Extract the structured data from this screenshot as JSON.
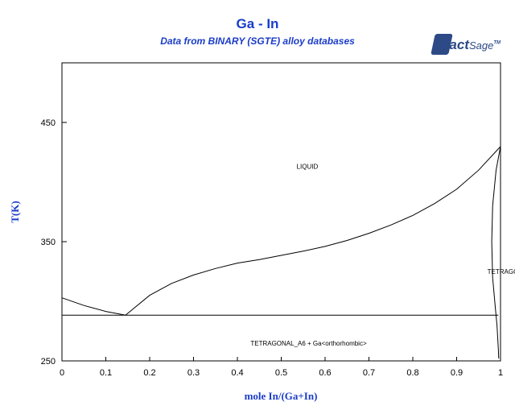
{
  "title": "Ga - In",
  "subtitle": "Data from BINARY (SGTE) alloy databases",
  "logo": {
    "text_bold": "Fact",
    "text_light": "Sage",
    "mark": "TM"
  },
  "chart_data": {
    "type": "line",
    "title": "Ga - In",
    "subtitle": "Data from BINARY (SGTE) alloy databases",
    "xlabel": "mole In/(Ga+In)",
    "ylabel": "T(K)",
    "xlim": [
      0,
      1
    ],
    "ylim": [
      250,
      450
    ],
    "x_ticks": [
      0,
      0.1,
      0.2,
      0.3,
      0.4,
      0.5,
      0.6,
      0.7,
      0.8,
      0.9,
      1
    ],
    "x_tick_labels": [
      "0",
      "0.1",
      "0.2",
      "0.3",
      "0.4",
      "0.5",
      "0.6",
      "0.7",
      "0.8",
      "0.9",
      "1"
    ],
    "y_ticks": [
      250,
      350,
      450
    ],
    "y_tick_labels": [
      "250",
      "350",
      "450"
    ],
    "grid": false,
    "series": [
      {
        "values": [
          [
            0,
            302.9
          ],
          [
            0.05,
            296.5
          ],
          [
            0.1,
            291.5
          ],
          [
            0.145,
            288.4
          ]
        ]
      },
      {
        "values": [
          [
            0.145,
            288.4
          ],
          [
            0.2,
            305
          ],
          [
            0.25,
            315
          ],
          [
            0.3,
            322
          ],
          [
            0.35,
            327.5
          ],
          [
            0.4,
            332
          ],
          [
            0.45,
            335
          ],
          [
            0.5,
            338.5
          ],
          [
            0.55,
            342
          ],
          [
            0.6,
            346
          ],
          [
            0.65,
            351
          ],
          [
            0.7,
            357
          ],
          [
            0.75,
            364
          ],
          [
            0.8,
            372
          ],
          [
            0.85,
            382
          ],
          [
            0.9,
            394
          ],
          [
            0.95,
            410
          ],
          [
            1.0,
            429.8
          ]
        ]
      },
      {
        "values": [
          [
            0,
            288.4
          ],
          [
            0.995,
            288.4
          ]
        ]
      },
      {
        "values": [
          [
            1.0,
            429.8
          ],
          [
            0.99,
            410
          ],
          [
            0.982,
            380
          ],
          [
            0.98,
            350
          ],
          [
            0.982,
            320
          ],
          [
            0.988,
            295
          ],
          [
            0.992,
            280
          ],
          [
            0.995,
            260
          ],
          [
            0.996,
            252
          ]
        ]
      }
    ],
    "annotations": [
      {
        "text": "LIQUID",
        "x": 0.535,
        "y": 411
      },
      {
        "text": "TETRAGONAL",
        "x": 0.97,
        "y": 323
      },
      {
        "text": "TETRAGONAL_A6 + Ga<orthorhombic>",
        "x": 0.43,
        "y": 263
      }
    ]
  }
}
